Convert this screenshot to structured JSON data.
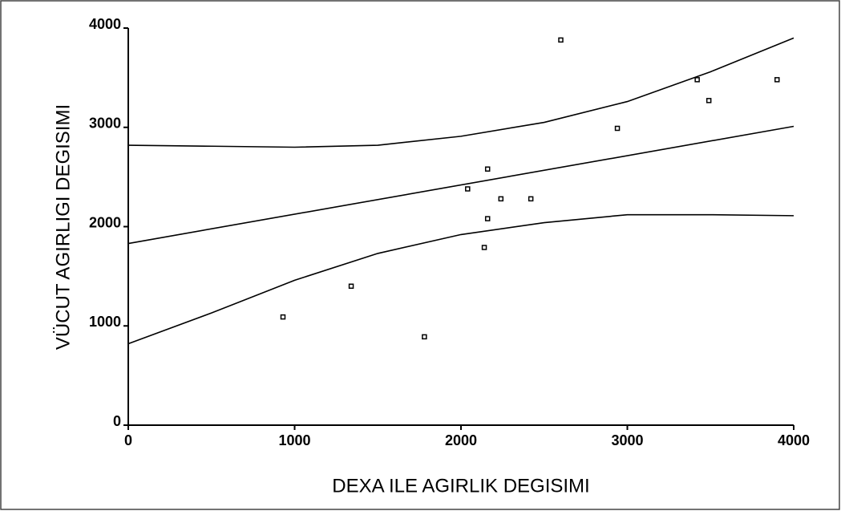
{
  "chart_data": {
    "type": "scatter",
    "xlabel": "DEXA ILE AGIRLIK DEGISIMI",
    "ylabel": "VÜCUT AGIRLIGI DEGISIMI",
    "x": [
      930,
      1340,
      1780,
      2040,
      2160,
      2160,
      2140,
      2240,
      2420,
      2600,
      2940,
      3420,
      3490,
      3900
    ],
    "values": [
      1090,
      1400,
      890,
      2380,
      2580,
      2080,
      1790,
      2280,
      2280,
      3880,
      2990,
      3480,
      3270,
      3480
    ],
    "color": "#000000",
    "fit_lines": [
      {
        "x": [
          0,
          4000
        ],
        "values": [
          1830,
          3010
        ]
      },
      {
        "x": [
          0,
          500,
          1000,
          1500,
          2000,
          2500,
          3000,
          3500,
          4000
        ],
        "values": [
          2820,
          2810,
          2800,
          2820,
          2910,
          3050,
          3260,
          3560,
          3900
        ]
      },
      {
        "x": [
          0,
          500,
          1000,
          1500,
          2000,
          2500,
          3000,
          3500,
          4000
        ],
        "values": [
          820,
          1130,
          1460,
          1730,
          1920,
          2040,
          2120,
          2120,
          2110
        ]
      }
    ],
    "xlim": [
      0,
      4000
    ],
    "xticks": [
      0,
      1000,
      2000,
      3000,
      4000
    ],
    "ylim": [
      0,
      4000
    ],
    "yticks": [
      0,
      1000,
      2000,
      3000,
      4000
    ]
  }
}
